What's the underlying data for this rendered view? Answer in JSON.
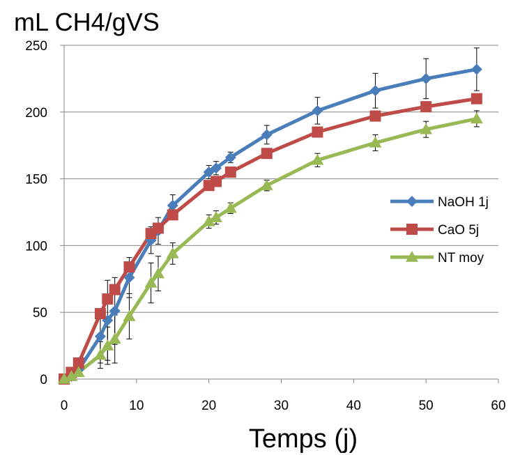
{
  "chart_data": {
    "type": "line",
    "title": "mL CH4/gVS",
    "xlabel": "Temps (j)",
    "ylabel": "",
    "xlim": [
      0,
      60
    ],
    "ylim": [
      0,
      250
    ],
    "xticks": [
      0,
      10,
      20,
      30,
      40,
      50,
      60
    ],
    "yticks": [
      0,
      50,
      100,
      150,
      200,
      250
    ],
    "grid": "horizontal",
    "legend_position": "right",
    "series": [
      {
        "name": "NaOH 1j",
        "color": "#4a7ebb",
        "marker": "diamond",
        "x": [
          0,
          1,
          2,
          5,
          6,
          7,
          9,
          12,
          13,
          15,
          20,
          21,
          23,
          28,
          35,
          43,
          50,
          57
        ],
        "y": [
          0,
          2,
          7,
          32,
          44,
          51,
          76,
          104,
          111,
          130,
          155,
          158,
          166,
          183,
          201,
          216,
          225,
          232
        ],
        "err": [
          0,
          0,
          0,
          20,
          30,
          25,
          15,
          10,
          10,
          8,
          5,
          5,
          4,
          7,
          10,
          13,
          15,
          16
        ]
      },
      {
        "name": "CaO 5j",
        "color": "#be4b48",
        "marker": "square",
        "x": [
          0,
          1,
          2,
          5,
          6,
          7,
          9,
          12,
          13,
          15,
          20,
          21,
          23,
          28,
          35,
          43,
          50,
          57
        ],
        "y": [
          0,
          5,
          12,
          49,
          60,
          67,
          84,
          109,
          113,
          123,
          145,
          148,
          155,
          169,
          185,
          197,
          204,
          210
        ],
        "err": [
          0,
          0,
          0,
          0,
          0,
          0,
          0,
          0,
          0,
          0,
          0,
          0,
          0,
          0,
          0,
          0,
          0,
          0
        ]
      },
      {
        "name": "NT moy",
        "color": "#98b954",
        "marker": "triangle",
        "x": [
          0,
          1,
          2,
          5,
          6,
          7,
          9,
          12,
          13,
          15,
          20,
          21,
          23,
          28,
          35,
          43,
          50,
          57
        ],
        "y": [
          0,
          2,
          5,
          18,
          25,
          30,
          47,
          72,
          79,
          94,
          118,
          121,
          128,
          145,
          164,
          177,
          187,
          195
        ],
        "err": [
          0,
          0,
          0,
          10,
          14,
          18,
          17,
          15,
          13,
          8,
          5,
          5,
          4,
          4,
          5,
          6,
          6,
          6
        ]
      }
    ]
  }
}
